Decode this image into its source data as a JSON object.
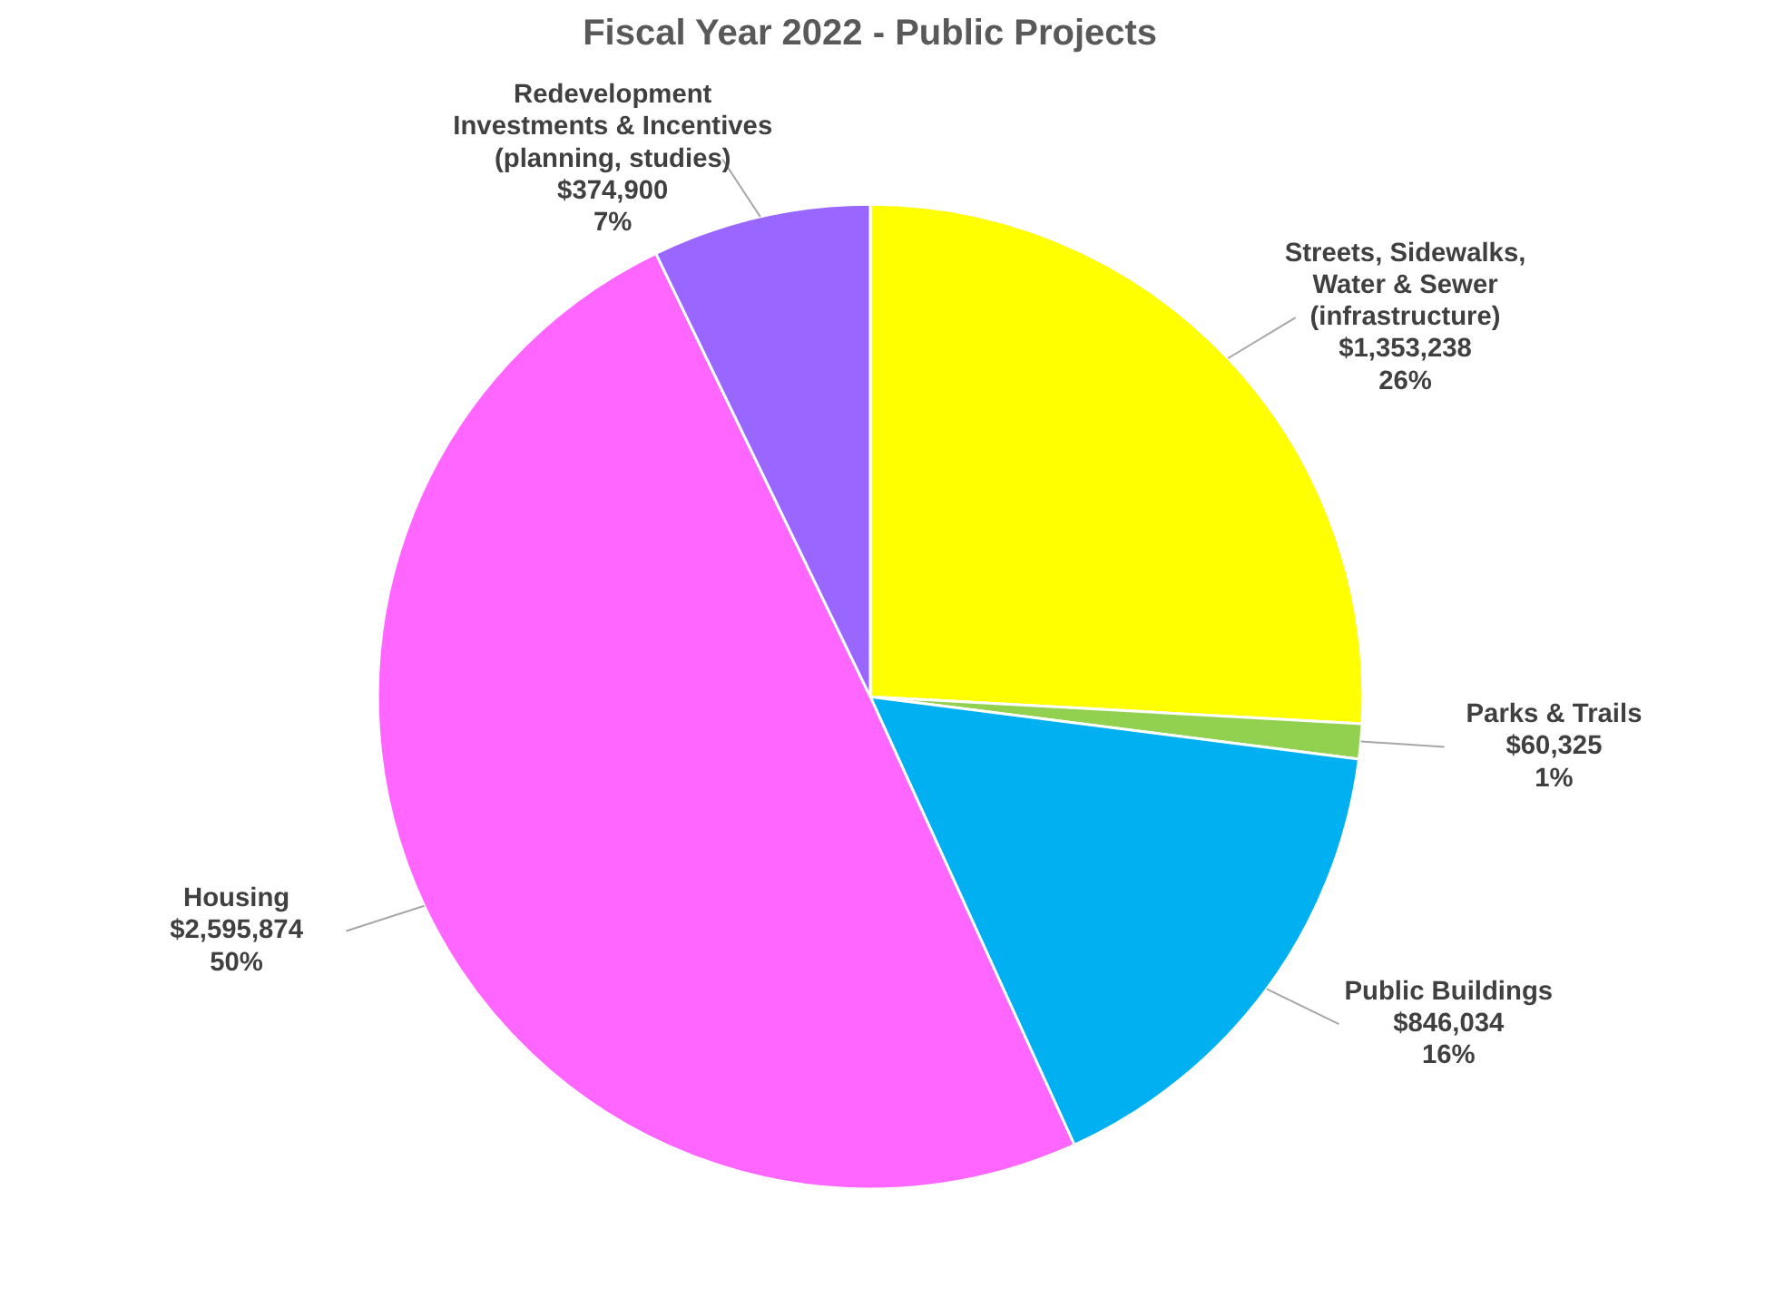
{
  "chart_data": {
    "type": "pie",
    "title": "Fiscal Year 2022 - Public Projects",
    "categories": [
      "Streets, Sidewalks, Water & Sewer (infrastructure)",
      "Parks & Trails",
      "Public Buildings",
      "Housing",
      "Redevelopment Investments & Incentives (planning, studies)"
    ],
    "values": [
      1353238,
      60325,
      846034,
      2595874,
      374900
    ],
    "colors": [
      "#ffff00",
      "#92d050",
      "#00b0f0",
      "#ff66ff",
      "#9966ff"
    ],
    "value_labels": [
      "$1,353,238\n26%",
      "$60,325\n1%",
      "$846,034\n16%",
      "$2,595,874\n50%",
      "$374,900\n7%"
    ]
  }
}
